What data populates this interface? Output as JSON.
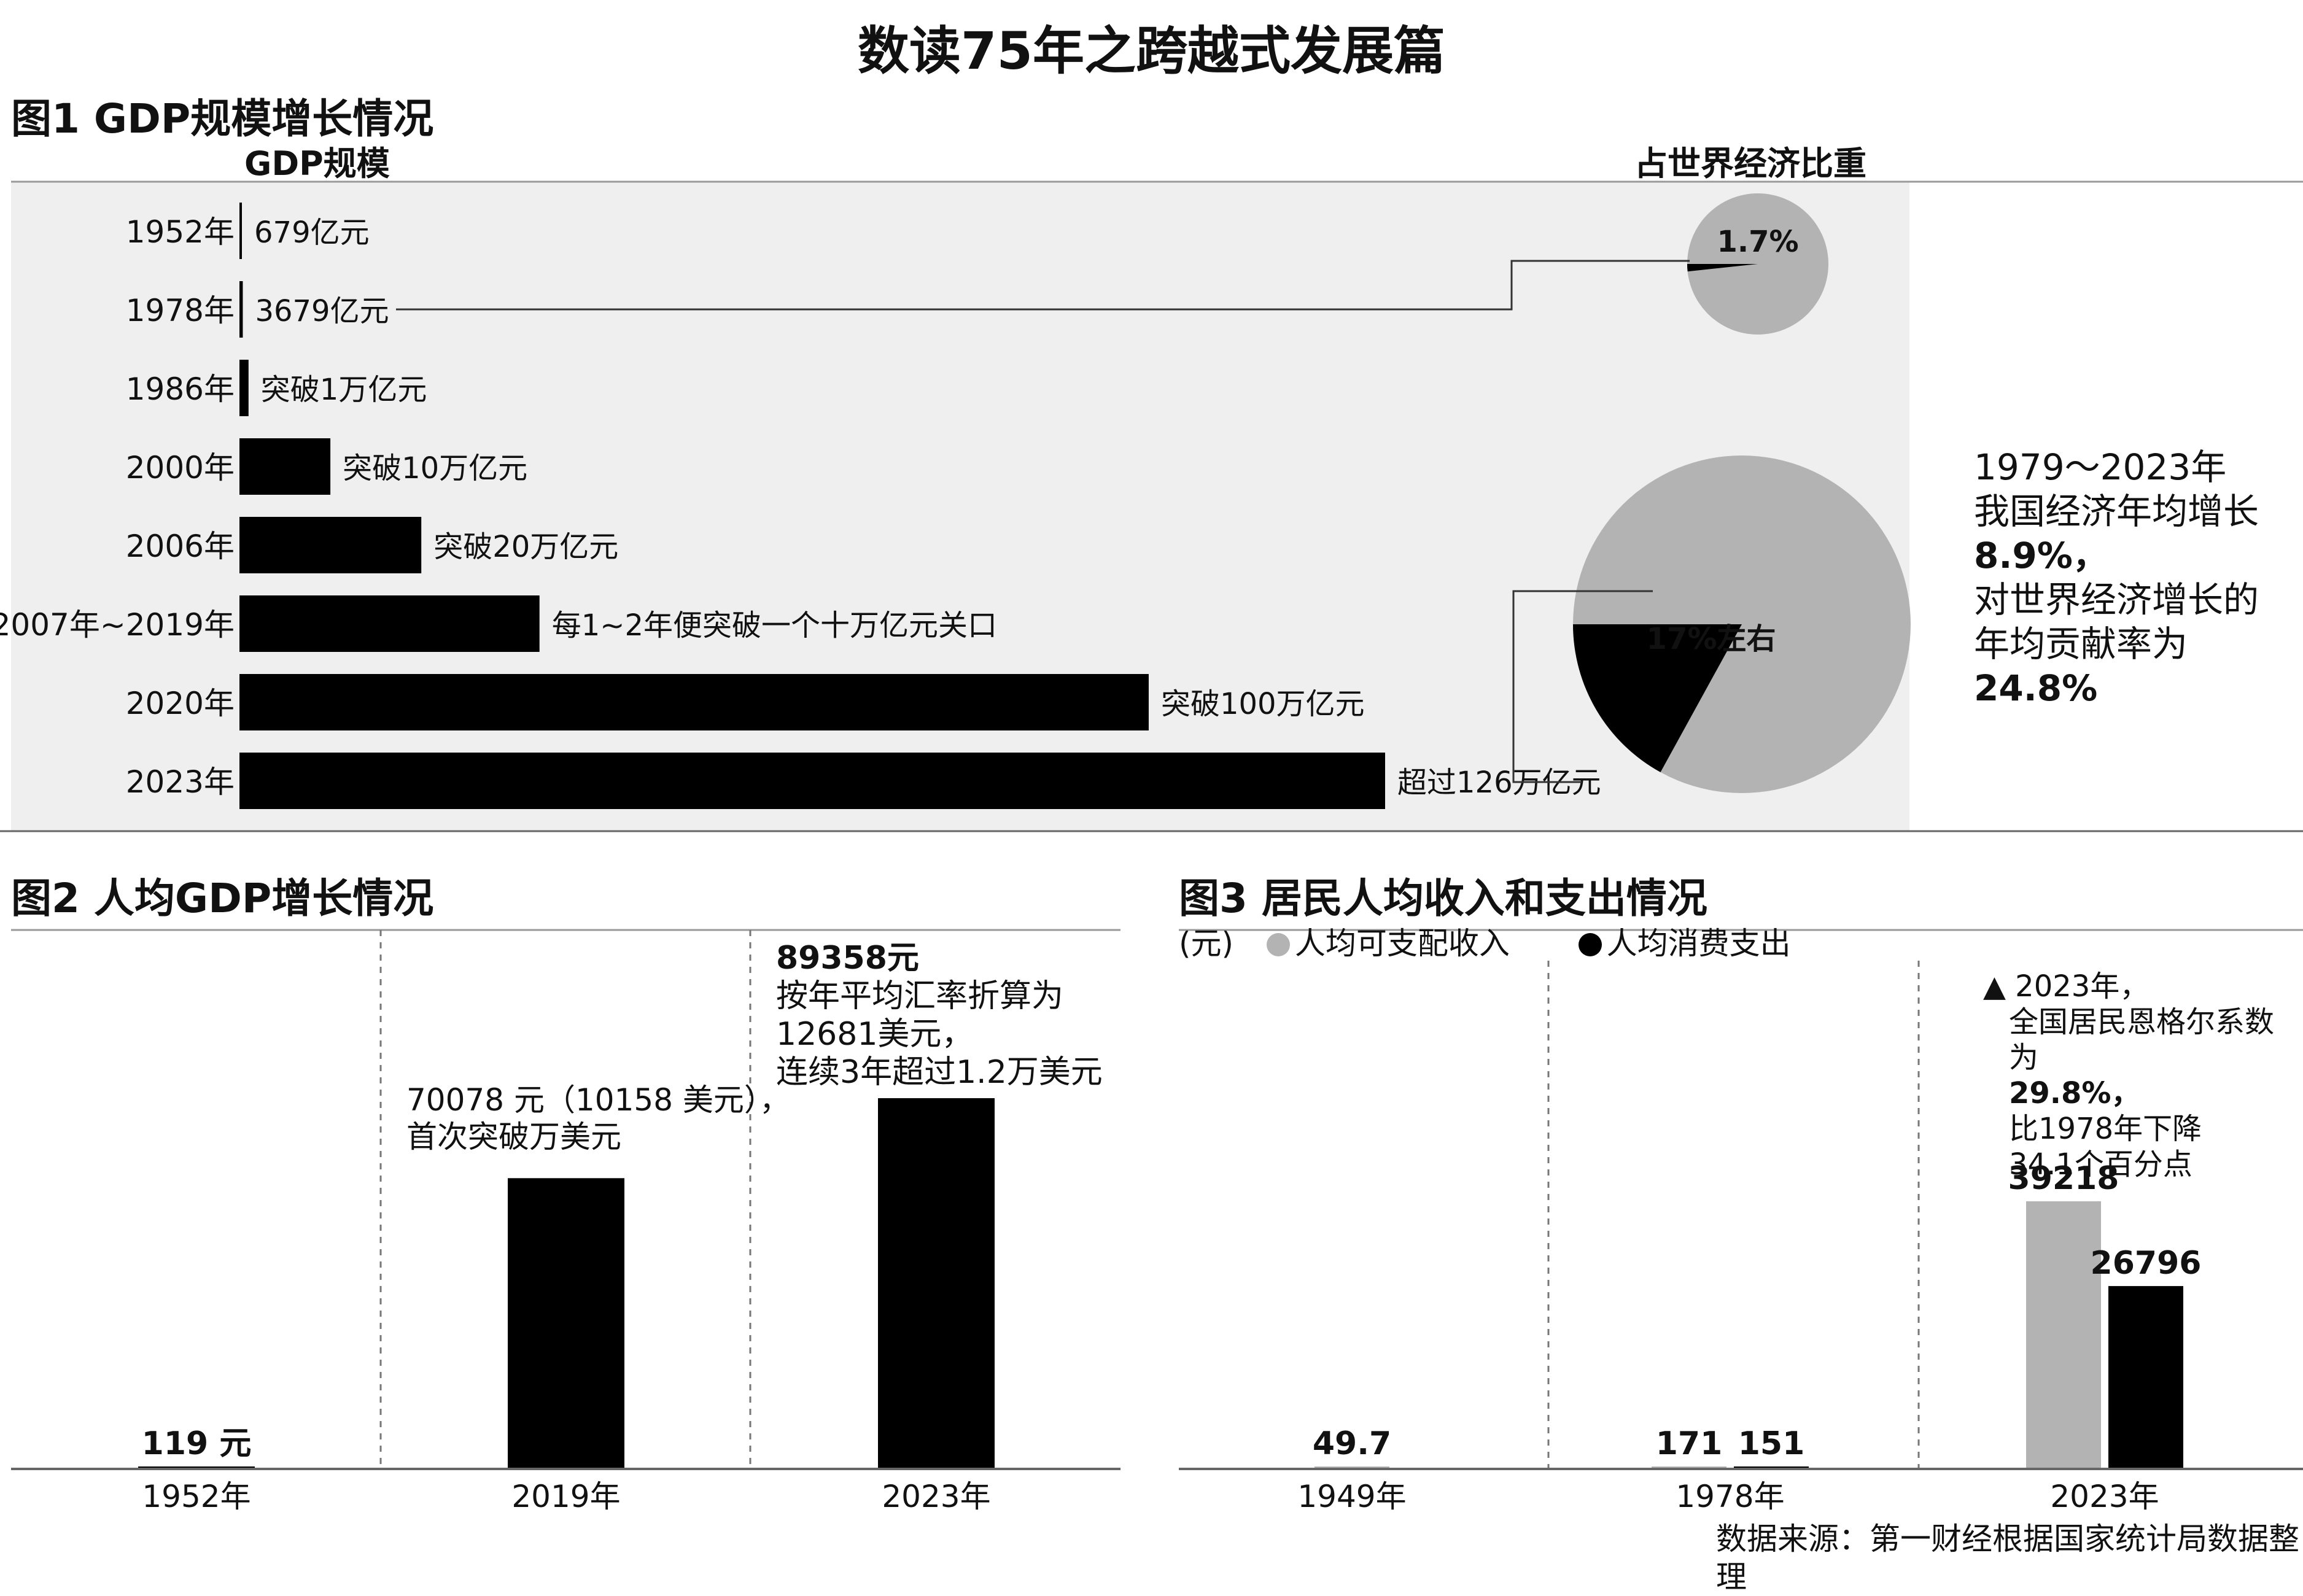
{
  "title": "数读75年之跨越式发展篇",
  "colors": {
    "black": "#000000",
    "gray": "#b3b3b3",
    "panel": "#efefef"
  },
  "fig1": {
    "heading": "图1 GDP规模增长情况",
    "left_label": "GDP规模",
    "right_label": "占世界经济比重",
    "note": {
      "line1": "1979～2023年",
      "line2": "我国经济年均增长",
      "line3": "8.9%，",
      "line4": "对世界经济增长的",
      "line5": "年均贡献率为",
      "line6": "24.8%"
    }
  },
  "fig2": {
    "heading": "图2 人均GDP增长情况",
    "annot_2019_l1": "70078 元（10158 美元），",
    "annot_2019_l2": "首次突破万美元",
    "annot_2023_l1": "89358元",
    "annot_2023_l2": "按年平均汇率折算为",
    "annot_2023_l3": "12681美元，",
    "annot_2023_l4": "连续3年超过1.2万美元"
  },
  "fig3": {
    "heading": "图3 居民人均收入和支出情况",
    "unit": "(元)",
    "note_l1": "▲ 2023年，",
    "note_l2": "全国居民恩格尔系数为",
    "note_l3": "29.8%，",
    "note_l4": "比1978年下降",
    "note_l5": "34.1个百分点"
  },
  "source": "数据来源：第一财经根据国家统计局数据整理",
  "chart_data": [
    {
      "type": "bar",
      "orientation": "horizontal",
      "title": "图1 GDP规模增长情况",
      "ylabel": "GDP规模",
      "categories": [
        "1952年",
        "1978年",
        "1986年",
        "2000年",
        "2006年",
        "2007年~2019年",
        "2020年",
        "2023年"
      ],
      "values": [
        679,
        3679,
        10000,
        100000,
        200000,
        330000,
        1000000,
        1260000
      ],
      "labels": [
        "679亿元",
        "3679亿元",
        "突破1万亿元",
        "突破10万亿元",
        "突破20万亿元",
        "每1~2年便突破一个十万亿元关口",
        "突破100万亿元",
        "超过126万亿元"
      ],
      "units": "亿元",
      "xlim": [
        0,
        1260000
      ]
    },
    {
      "type": "pie",
      "title": "占世界经济比重",
      "year": "1978年",
      "slices": [
        {
          "label": "1.7%",
          "value": 1.7
        },
        {
          "label": "",
          "value": 98.3
        }
      ]
    },
    {
      "type": "pie",
      "title": "占世界经济比重",
      "year": "2023年",
      "slices": [
        {
          "label": "17%左右",
          "value": 17
        },
        {
          "label": "",
          "value": 83
        }
      ]
    },
    {
      "type": "bar",
      "title": "图2 人均GDP增长情况",
      "categories": [
        "1952年",
        "2019年",
        "2023年"
      ],
      "values": [
        119,
        70078,
        89358
      ],
      "labels": [
        "119 元",
        "",
        ""
      ],
      "units": "元",
      "ylim": [
        0,
        89358
      ]
    },
    {
      "type": "bar",
      "title": "图3 居民人均收入和支出情况",
      "ylabel": "(元)",
      "categories": [
        "1949年",
        "1978年",
        "2023年"
      ],
      "series": [
        {
          "name": "人均可支配收入",
          "color": "#b3b3b3",
          "values": [
            49.7,
            171,
            39218
          ]
        },
        {
          "name": "人均消费支出",
          "color": "#000000",
          "values": [
            null,
            151,
            26796
          ]
        }
      ],
      "ylim": [
        0,
        39218
      ]
    }
  ]
}
